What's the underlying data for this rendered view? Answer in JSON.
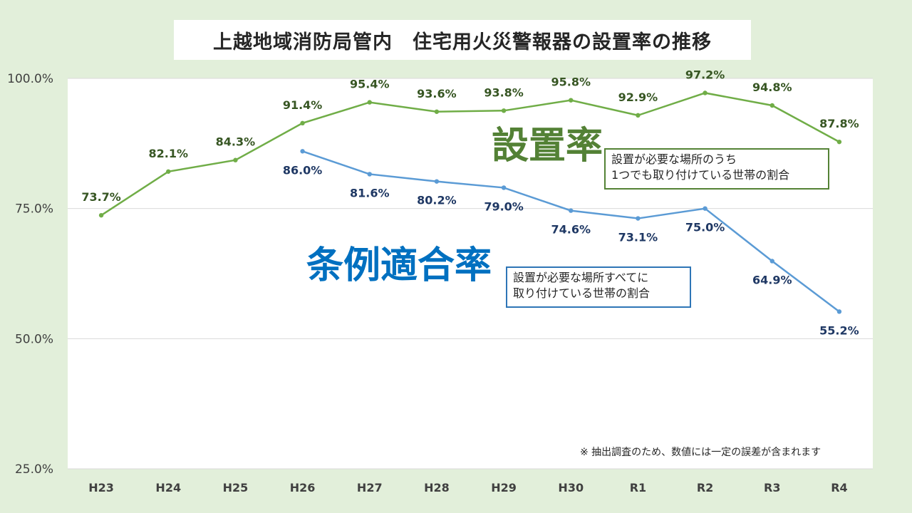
{
  "chart_data": {
    "type": "line",
    "title": "上越地域消防局管内　住宅用火災警報器の設置率の推移",
    "categories": [
      "H23",
      "H24",
      "H25",
      "H26",
      "H27",
      "H28",
      "H29",
      "H30",
      "R1",
      "R2",
      "R3",
      "R4"
    ],
    "ylim": [
      25,
      100
    ],
    "yticks": [
      "100.0%",
      "75.0%",
      "50.0%",
      "25.0%"
    ],
    "grid": true,
    "series": [
      {
        "name": "設置率",
        "color": "#70ad47",
        "values": [
          73.7,
          82.1,
          84.3,
          91.4,
          95.4,
          93.6,
          93.8,
          95.8,
          92.9,
          97.2,
          94.8,
          87.8
        ],
        "labels": [
          "73.7%",
          "82.1%",
          "84.3%",
          "91.4%",
          "95.4%",
          "93.6%",
          "93.8%",
          "95.8%",
          "92.9%",
          "97.2%",
          "94.8%",
          "87.8%"
        ],
        "description_lines": [
          "設置が必要な場所のうち",
          "1つでも取り付けている世帯の割合"
        ]
      },
      {
        "name": "条例適合率",
        "color": "#5b9bd5",
        "values": [
          null,
          null,
          null,
          86.0,
          81.6,
          80.2,
          79.0,
          74.6,
          73.1,
          75.0,
          64.9,
          55.2
        ],
        "labels": [
          null,
          null,
          null,
          "86.0%",
          "81.6%",
          "80.2%",
          "79.0%",
          "74.6%",
          "73.1%",
          "75.0%",
          "64.9%",
          "55.2%"
        ],
        "description_lines": [
          "設置が必要な場所すべてに",
          "取り付けている世帯の割合"
        ]
      }
    ],
    "footnote": "※ 抽出調査のため、数値には一定の誤差が含まれます"
  }
}
